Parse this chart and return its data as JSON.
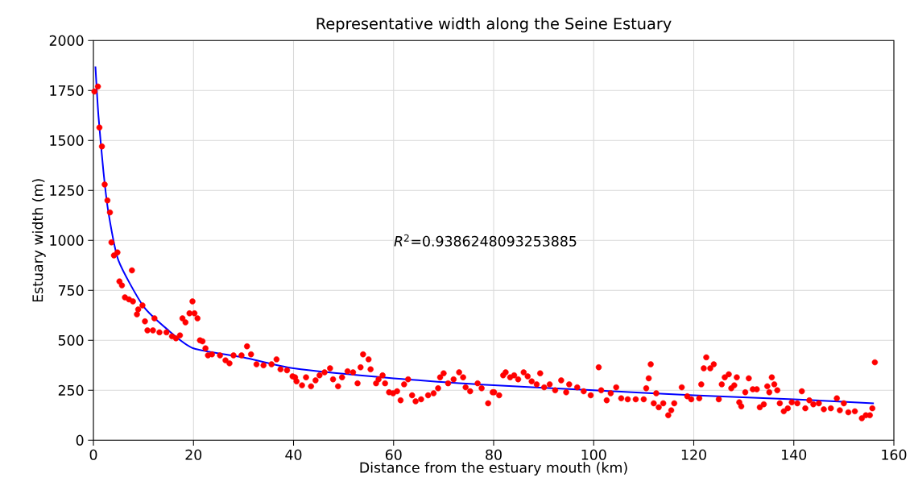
{
  "chart_data": {
    "type": "scatter",
    "title": "Representative width along the Seine Estuary",
    "xlabel": "Distance from the estuary mouth (km)",
    "ylabel": "Estuary width (m)",
    "annotations": [
      "*R*$^{2}$=0.9386248093253885"
    ],
    "xlim": [
      0,
      160
    ],
    "ylim": [
      0,
      2000
    ],
    "xticks": [
      0,
      20,
      40,
      60,
      80,
      100,
      120,
      140,
      160
    ],
    "yticks": [
      0,
      250,
      500,
      750,
      1000,
      1250,
      1500,
      1750,
      2000
    ],
    "grid": true,
    "series": [
      {
        "color": "#ff0000",
        "marker": "circle",
        "x": [
          0.2,
          0.9,
          1.2,
          1.7,
          2.25,
          2.8,
          3.3,
          3.6,
          4.1,
          4.8,
          5.2,
          5.7,
          6.3,
          7.1,
          7.7,
          7.9,
          8.7,
          8.95,
          9.8,
          10.3,
          10.8,
          11.9,
          12.2,
          13.2,
          14.6,
          15.7,
          16.5,
          17.3,
          17.8,
          18.4,
          19.2,
          19.8,
          20.2,
          20.8,
          21.3,
          21.8,
          22.4,
          22.9,
          23.7,
          25.3,
          26.4,
          27.2,
          28.0,
          29.6,
          30.7,
          31.5,
          32.6,
          34.0,
          35.6,
          36.6,
          37.4,
          38.7,
          39.8,
          40.3,
          40.6,
          41.7,
          42.5,
          43.5,
          44.4,
          45.2,
          46.2,
          47.3,
          47.9,
          48.9,
          49.7,
          50.8,
          51.9,
          52.8,
          53.4,
          53.9,
          55.0,
          55.4,
          56.5,
          57.0,
          57.8,
          58.3,
          59.1,
          59.9,
          60.7,
          61.4,
          62.1,
          62.9,
          63.7,
          64.4,
          65.5,
          66.9,
          68.0,
          68.9,
          69.3,
          70.0,
          70.9,
          72.0,
          73.1,
          73.9,
          74.4,
          75.3,
          76.8,
          77.6,
          78.9,
          79.8,
          80.1,
          81.1,
          81.9,
          82.4,
          83.3,
          84.1,
          84.9,
          86.0,
          86.8,
          87.6,
          88.6,
          89.3,
          90.1,
          91.2,
          92.3,
          93.5,
          94.5,
          95.1,
          96.7,
          98.0,
          99.4,
          101.0,
          101.5,
          102.6,
          103.4,
          104.5,
          105.5,
          106.8,
          108.4,
          110.0,
          110.5,
          111.0,
          111.4,
          112.0,
          112.5,
          113.0,
          113.9,
          114.9,
          115.5,
          116.1,
          117.6,
          118.7,
          119.5,
          121.1,
          121.5,
          122.0,
          122.5,
          123.3,
          124.0,
          125.0,
          125.6,
          126.2,
          127.0,
          127.5,
          128.1,
          128.6,
          129.1,
          129.5,
          130.3,
          131.0,
          131.8,
          132.6,
          133.2,
          134.0,
          134.7,
          135.1,
          135.6,
          136.1,
          136.7,
          137.2,
          138.0,
          138.8,
          139.6,
          140.7,
          141.6,
          142.3,
          143.1,
          143.9,
          145.0,
          146.0,
          147.4,
          148.6,
          149.2,
          150.0,
          150.9,
          152.2,
          153.6,
          154.4,
          155.2,
          155.7,
          156.2
        ],
        "values": [
          1745,
          1770,
          1565,
          1470,
          1280,
          1200,
          1140,
          990,
          925,
          940,
          795,
          775,
          715,
          705,
          850,
          695,
          630,
          655,
          675,
          595,
          550,
          550,
          610,
          540,
          540,
          520,
          510,
          525,
          610,
          590,
          635,
          695,
          635,
          610,
          500,
          495,
          460,
          425,
          430,
          425,
          400,
          385,
          425,
          425,
          470,
          430,
          380,
          375,
          380,
          405,
          355,
          350,
          320,
          315,
          295,
          275,
          315,
          270,
          300,
          325,
          340,
          360,
          305,
          270,
          315,
          345,
          340,
          285,
          365,
          430,
          405,
          355,
          285,
          305,
          325,
          285,
          240,
          235,
          245,
          200,
          280,
          305,
          225,
          195,
          205,
          225,
          235,
          260,
          315,
          335,
          285,
          305,
          340,
          315,
          265,
          245,
          285,
          260,
          185,
          240,
          240,
          225,
          325,
          340,
          315,
          325,
          305,
          340,
          320,
          295,
          280,
          335,
          265,
          280,
          250,
          300,
          240,
          280,
          265,
          245,
          225,
          365,
          250,
          200,
          235,
          265,
          210,
          205,
          205,
          205,
          260,
          310,
          380,
          185,
          235,
          165,
          185,
          125,
          150,
          185,
          265,
          220,
          205,
          210,
          280,
          360,
          415,
          360,
          380,
          205,
          280,
          315,
          330,
          260,
          275,
          315,
          190,
          170,
          240,
          310,
          255,
          255,
          165,
          180,
          270,
          240,
          315,
          280,
          250,
          185,
          145,
          160,
          190,
          185,
          245,
          160,
          200,
          180,
          185,
          155,
          160,
          210,
          150,
          185,
          140,
          145,
          110,
          125,
          125,
          160,
          390
        ]
      },
      {
        "type": "line",
        "color": "#0000ff",
        "marker": "none",
        "x": [
          0.4,
          1,
          2,
          3,
          5,
          10,
          15,
          20,
          30,
          40,
          60,
          80,
          100,
          120,
          140,
          156
        ],
        "values": [
          1870,
          1625,
          1345,
          1140,
          900,
          670,
          550,
          460,
          415,
          360,
          310,
          275,
          250,
          225,
          205,
          185
        ]
      }
    ]
  }
}
